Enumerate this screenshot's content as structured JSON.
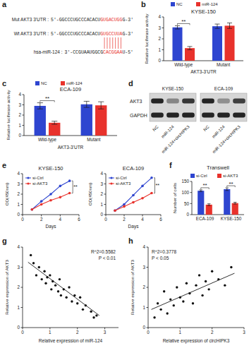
{
  "panel_labels": [
    "a",
    "b",
    "c",
    "d",
    "e",
    "f",
    "g",
    "h"
  ],
  "sequences": {
    "rows": [
      {
        "label": "Mut AKT3 3'UTR :",
        "prefix": "5'-GGCCCUGCCCACACU",
        "highlight": "GUGACUGG",
        "suffix": "G-3'"
      },
      {
        "label": "Wt AKT3 3'UTR :",
        "prefix": "5'-GGCCCUGCCCACACU",
        "highlight": "GUGCCUUA",
        "suffix": "G-3'"
      },
      {
        "label": "hsa-miR-124 :",
        "prefix": "3'-CCGUAAUGGCG",
        "highlight": "CACGGAA",
        "suffix": "U-5'"
      }
    ]
  },
  "blot": {
    "cell_lines": [
      "KYSE-150",
      "ECA-109"
    ],
    "lanes": [
      "NC",
      "miR-124",
      "miR-124+circHIPK3"
    ],
    "proteins": [
      {
        "name": "AKT3",
        "levels": [
          [
            1,
            0.45,
            0.9
          ],
          [
            1,
            0.4,
            0.85
          ]
        ]
      },
      {
        "name": "GAPDH",
        "levels": [
          [
            1,
            1,
            1
          ],
          [
            1,
            1,
            1
          ]
        ]
      }
    ]
  },
  "chart_data": [
    {
      "type": "bar",
      "title": "KYSE-150",
      "categories": [
        "Wild-type",
        "Mutant"
      ],
      "x_label": "AKT3-3'UTR",
      "y_label": "Relative luciferase activity",
      "series": [
        {
          "name": "NC",
          "color": "#2e45d0",
          "values": [
            3.05,
            3.15
          ],
          "errors": [
            0.15,
            0.2
          ]
        },
        {
          "name": "miR-124",
          "color": "#e8322c",
          "values": [
            1.15,
            3.2
          ],
          "errors": [
            0.15,
            0.25
          ]
        }
      ],
      "ylim": [
        0,
        4
      ],
      "yticks": [
        0,
        1,
        2,
        3,
        4
      ],
      "legend": "top",
      "annotations": [
        {
          "text": "**",
          "category": 0
        }
      ]
    },
    {
      "type": "bar",
      "title": "ECA-109",
      "categories": [
        "Wild-type",
        "Mutant"
      ],
      "x_label": "AKT3-3'UTR",
      "y_label": "Relative luciferase activity",
      "series": [
        {
          "name": "NC",
          "color": "#2e45d0",
          "values": [
            2.9,
            3.05
          ],
          "errors": [
            0.3,
            0.3
          ]
        },
        {
          "name": "miR-124",
          "color": "#e8322c",
          "values": [
            1.25,
            2.95
          ],
          "errors": [
            0.15,
            0.35
          ]
        }
      ],
      "ylim": [
        0,
        4
      ],
      "yticks": [
        0,
        1,
        2,
        3,
        4
      ],
      "legend": "top",
      "annotations": [
        {
          "text": "**",
          "category": 0
        }
      ]
    },
    {
      "type": "line",
      "title": "KYSE-150",
      "x": [
        1,
        2,
        3,
        4,
        5
      ],
      "x_label": "Days",
      "y_label": "OD(450nm)",
      "series": [
        {
          "name": "si-Ctrl",
          "color": "#2e45d0",
          "marker": "circle",
          "values": [
            0.5,
            1.3,
            2.0,
            2.8,
            3.3
          ]
        },
        {
          "name": "si-AKT3",
          "color": "#e8322c",
          "marker": "circle",
          "values": [
            0.5,
            1.0,
            1.4,
            1.7,
            2.1
          ]
        }
      ],
      "xlim": [
        0,
        6
      ],
      "xticks": [
        0,
        2,
        4,
        6
      ],
      "ylim": [
        0,
        4
      ],
      "yticks": [
        0,
        1,
        2,
        3,
        4
      ],
      "legend": "top-left",
      "annotations": [
        {
          "text": "**"
        }
      ]
    },
    {
      "type": "line",
      "title": "ECA-109",
      "x": [
        1,
        2,
        3,
        4,
        5
      ],
      "x_label": "Days",
      "y_label": "OD(450nm)",
      "series": [
        {
          "name": "si-Ctrl",
          "color": "#2e45d0",
          "marker": "circle",
          "values": [
            0.4,
            1.0,
            1.9,
            2.8,
            3.6
          ]
        },
        {
          "name": "si-AKT3",
          "color": "#e8322c",
          "marker": "circle",
          "values": [
            0.4,
            0.8,
            1.2,
            1.6,
            2.1
          ]
        }
      ],
      "xlim": [
        0,
        6
      ],
      "xticks": [
        0,
        2,
        4,
        6
      ],
      "ylim": [
        0,
        4
      ],
      "yticks": [
        0,
        1,
        2,
        3,
        4
      ],
      "legend": "top-left",
      "annotations": [
        {
          "text": "**"
        }
      ]
    },
    {
      "type": "bar",
      "title": "Transwell",
      "categories": [
        "ECA-109",
        "KYSE-150"
      ],
      "y_label": "Number of cells",
      "series": [
        {
          "name": "si-Ctrl",
          "color": "#2e45d0",
          "values": [
            108,
            115
          ],
          "errors": [
            4,
            6
          ]
        },
        {
          "name": "si-AKT3",
          "color": "#e8322c",
          "values": [
            45,
            52
          ],
          "errors": [
            4,
            4
          ]
        }
      ],
      "ylim": [
        0,
        150
      ],
      "yticks": [
        0,
        50,
        100,
        150
      ],
      "legend": "top",
      "annotations": [
        {
          "text": "**",
          "category": 0
        },
        {
          "text": "**",
          "category": 1
        }
      ]
    },
    {
      "type": "scatter",
      "x_label": "Relative expression of miR-124",
      "y_label": "Relative expression of AKT3",
      "color": "#111111",
      "x": [
        0.3,
        0.4,
        0.5,
        0.6,
        0.7,
        0.8,
        0.85,
        0.9,
        1.0,
        1.05,
        1.1,
        1.2,
        1.3,
        1.35,
        1.4,
        1.5,
        1.6,
        1.7,
        1.8,
        1.9,
        2.0,
        2.1,
        2.2,
        2.3,
        2.5,
        2.6,
        2.7
      ],
      "values": [
        3.6,
        3.2,
        2.6,
        3.0,
        2.4,
        2.8,
        2.2,
        2.5,
        2.6,
        1.9,
        2.3,
        2.1,
        1.8,
        2.4,
        1.6,
        1.9,
        1.5,
        2.0,
        1.3,
        1.6,
        1.2,
        1.5,
        0.9,
        1.1,
        0.8,
        0.5,
        0.6
      ],
      "trend_line": {
        "x": [
          0.2,
          2.8
        ],
        "y": [
          3.25,
          0.6
        ]
      },
      "xlim": [
        0,
        3.5
      ],
      "xticks": [
        0,
        1,
        2,
        3
      ],
      "ylim": [
        0,
        4
      ],
      "yticks": [
        0,
        1,
        2,
        3,
        4
      ],
      "annotations": [
        {
          "text": "R^2=0.5582"
        },
        {
          "text": "P < 0.01"
        }
      ]
    },
    {
      "type": "scatter",
      "x_label": "Relative expression of circHIPK3",
      "y_label": "Relative expression of AKT3",
      "color": "#111111",
      "x": [
        0.2,
        0.3,
        0.4,
        0.5,
        0.6,
        0.7,
        0.8,
        0.9,
        1.0,
        1.1,
        1.2,
        1.3,
        1.4,
        1.5,
        1.6,
        1.7,
        1.8,
        1.9,
        2.0,
        2.2,
        2.4,
        2.6
      ],
      "values": [
        0.5,
        1.2,
        0.9,
        1.8,
        0.7,
        1.4,
        1.1,
        2.0,
        1.5,
        1.3,
        2.2,
        1.7,
        1.2,
        2.1,
        2.6,
        1.6,
        2.3,
        1.9,
        2.8,
        2.4,
        2.1,
        3.0
      ],
      "trend_line": {
        "x": [
          0.1,
          2.7
        ],
        "y": [
          0.9,
          2.7
        ]
      },
      "xlim": [
        0,
        3
      ],
      "xticks": [
        0,
        1,
        2,
        3
      ],
      "ylim": [
        0,
        4
      ],
      "yticks": [
        0,
        1,
        2,
        3,
        4
      ],
      "annotations": [
        {
          "text": "R^2=0.3778"
        },
        {
          "text": "P < 0.05"
        }
      ]
    }
  ]
}
